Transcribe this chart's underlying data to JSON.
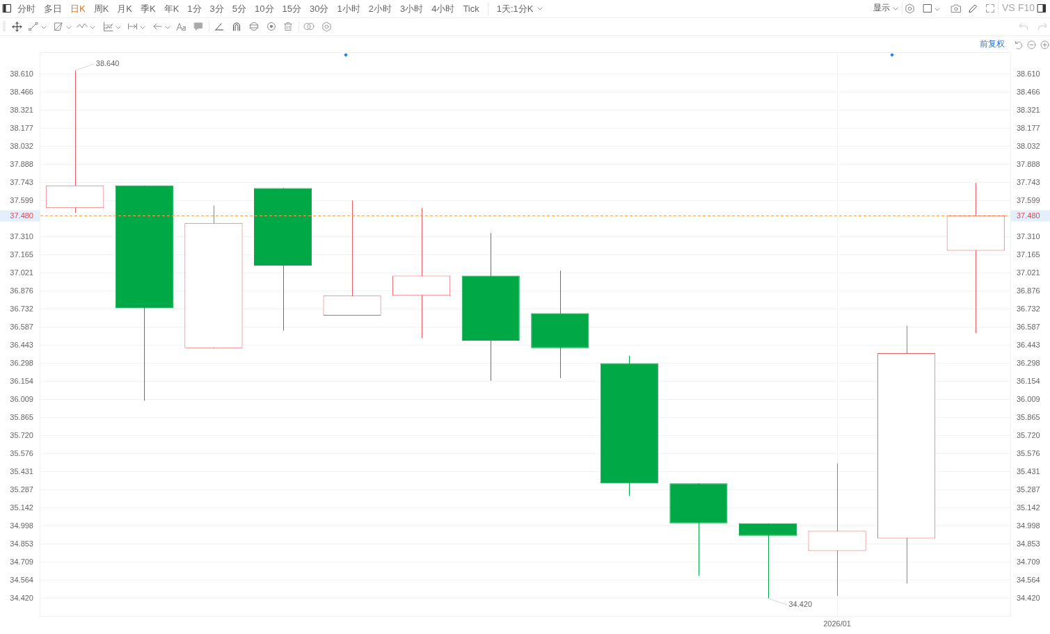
{
  "chart_data": {
    "type": "candlestick",
    "categories": [
      null,
      null,
      null,
      null,
      null,
      null,
      null,
      null,
      null,
      null,
      null,
      "2026/01",
      null,
      null
    ],
    "ohlc": [
      [
        37.54,
        38.64,
        37.5,
        37.72
      ],
      [
        37.72,
        37.72,
        36.0,
        36.74
      ],
      [
        36.42,
        37.56,
        36.42,
        37.42
      ],
      [
        37.7,
        37.7,
        36.56,
        37.08
      ],
      [
        36.68,
        37.6,
        36.68,
        36.84
      ],
      [
        36.84,
        37.54,
        36.5,
        37.0
      ],
      [
        37.0,
        37.34,
        36.16,
        36.48
      ],
      [
        36.7,
        37.04,
        36.18,
        36.42
      ],
      [
        36.3,
        36.36,
        35.24,
        35.34
      ],
      [
        35.34,
        35.34,
        34.6,
        35.02
      ],
      [
        35.02,
        35.02,
        34.42,
        34.92
      ],
      [
        34.8,
        35.5,
        34.44,
        34.96
      ],
      [
        34.9,
        36.6,
        34.54,
        36.38
      ],
      [
        37.2,
        37.74,
        36.54,
        37.48
      ]
    ],
    "colors": [
      "#ec5b63",
      "#00a846",
      "#ec5b63",
      "#00a846",
      "#ec5b63",
      "#ec5b63",
      "#00a846",
      "#00a846",
      "#00a846",
      "#00a846",
      "#00a846",
      "#ec5b63",
      "#ec5b63",
      "#ec5b63"
    ],
    "ylim": [
      34.28,
      38.78
    ],
    "yticks": [
      {
        "value": 38.61,
        "label": "38.610"
      },
      38.466,
      38.321,
      38.177,
      38.032,
      37.888,
      37.743,
      37.599,
      {
        "value": 37.31,
        "label": "37.310"
      },
      37.165,
      37.021,
      36.876,
      36.732,
      36.587,
      36.443,
      36.298,
      36.154,
      36.009,
      35.865,
      {
        "value": 35.72,
        "label": "35.720"
      },
      35.576,
      35.431,
      35.287,
      35.142,
      34.998,
      34.853,
      34.709,
      34.564,
      {
        "value": 34.42,
        "label": "34.420"
      }
    ],
    "y2lim": [
      34.28,
      38.78
    ],
    "y2ticks": [
      {
        "value": 38.61,
        "label": "38.610"
      },
      38.466,
      38.321,
      38.177,
      38.032,
      37.888,
      37.743,
      37.599,
      {
        "value": 37.31,
        "label": "37.310"
      },
      37.165,
      37.021,
      36.876,
      36.732,
      36.587,
      36.443,
      36.298,
      36.154,
      36.009,
      35.865,
      {
        "value": 35.72,
        "label": "35.720"
      },
      35.576,
      35.431,
      35.287,
      35.142,
      34.998,
      34.853,
      34.709,
      34.564,
      {
        "value": 34.42,
        "label": "34.420"
      }
    ],
    "grid": true,
    "ref_lines": [
      {
        "axis": "y",
        "value": 37.48,
        "label": "37.480",
        "color": "#f5a35c",
        "line_style": "dashed"
      }
    ],
    "annotations": [
      "分时",
      "多日",
      "日K",
      "周K",
      "月K",
      "季K",
      "年K",
      "1分",
      "3分",
      "5分",
      "10分",
      "15分",
      "30分",
      "1小时",
      "2小时",
      "3小时",
      "4小时",
      "Tick",
      "1天:1分K",
      "显示",
      "VS",
      "F10",
      "前复权",
      "38.640",
      "34.420"
    ]
  }
}
